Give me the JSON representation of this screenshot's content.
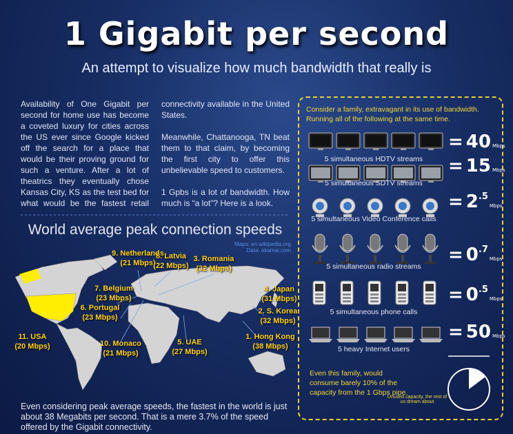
{
  "header": {
    "title": "1 Gigabit per second",
    "subtitle": "An attempt to visualize how much bandwidth that really is"
  },
  "intro": {
    "paragraph_1": "Availability of One Gigabit per second for home use has become a coveted luxury for cities across the US ever since Google kicked off the search for a place that would be their proving ground for such a venture. After a lot of theatrics they eventually chose Kansas City, KS as the test bed for what would be the fastest retail connectivity available in the United States.",
    "paragraph_2": "Meanwhile, Chattanooga, TN beat them to that claim, by becoming the first city to offer this unbelievable speed to customers.",
    "paragraph_3": "1 Gpbs is a lot of bandwidth. How much is “a lot”? Here is a look."
  },
  "map": {
    "title": "World average peak connection speeds",
    "credits": [
      "Maps: en.wikipedia.org",
      "Data: akamai.com"
    ],
    "countries": [
      {
        "label": "9. Netherlands",
        "speed": "(21 Mbps)"
      },
      {
        "label": "8. Latvia",
        "speed": "(22 Mbps)"
      },
      {
        "label": "3. Romania",
        "speed": "(32 Mbps)"
      },
      {
        "label": "4. Japan",
        "speed": "(31 Mbps)"
      },
      {
        "label": "7. Belgium",
        "speed": "(23 Mbps)"
      },
      {
        "label": "6. Portugal",
        "speed": "(23 Mbps)"
      },
      {
        "label": "2. S. Korea",
        "speed": "(32 Mbps)"
      },
      {
        "label": "11. USA",
        "speed": "(20 Mbps)"
      },
      {
        "label": "10. Monaco",
        "speed": "(21 Mbps)"
      },
      {
        "label": "5. UAE",
        "speed": "(27 Mbps)"
      },
      {
        "label": "1. Hong Kong",
        "speed": "(38 Mbps)"
      }
    ],
    "footer": "Even considering peak average speeds, the fastest in the world is just about 38 Megabits per second. That is a mere 3.7% of the speed offered by the Gigabit connectivity."
  },
  "panel": {
    "intro": "Consider a family, extravagant in its use of bandwidth. Running all of the following at the same time.",
    "equals": "=",
    "rows": [
      {
        "caption": "5 simultaneous HDTV streams",
        "value": "40",
        "fraction": null,
        "unit": "Mbps"
      },
      {
        "caption": "5 simultaneous SDTV streams",
        "value": "15",
        "fraction": null,
        "unit": "Mbps"
      },
      {
        "caption": "5 simultaneous Video Conference calls",
        "value": "2",
        "fraction": ".5",
        "unit": "Mbps"
      },
      {
        "caption": "5 simultaneous radio streams",
        "value": "0",
        "fraction": ".7",
        "unit": "Mbps"
      },
      {
        "caption": "5 simultaneous phone calls",
        "value": "0",
        "fraction": ".5",
        "unit": "Mbps"
      },
      {
        "caption": "5 heavy Internet users",
        "value": "50",
        "fraction": null,
        "unit": "Mbps"
      }
    ],
    "note": "Even this family, would consume barely 10% of the capacity from the 1 Gbps pipe.",
    "pie_note": "Unused capacity, the rest of us dream about"
  }
}
